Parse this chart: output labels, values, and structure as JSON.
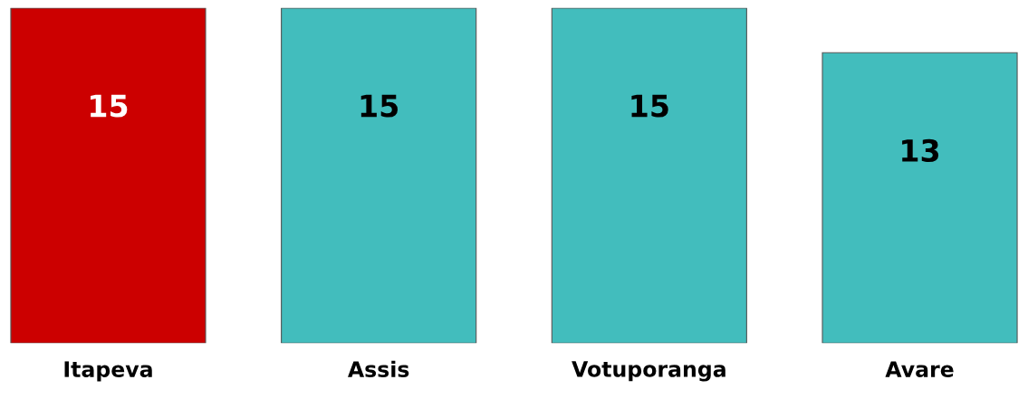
{
  "chart_data": {
    "type": "bar",
    "categories": [
      "Itapeva",
      "Assis",
      "Votuporanga",
      "Avare"
    ],
    "values": [
      15,
      15,
      15,
      13
    ],
    "colors": [
      "#cc0000",
      "#42bdbd",
      "#42bdbd",
      "#42bdbd"
    ],
    "data_labels": true
  }
}
